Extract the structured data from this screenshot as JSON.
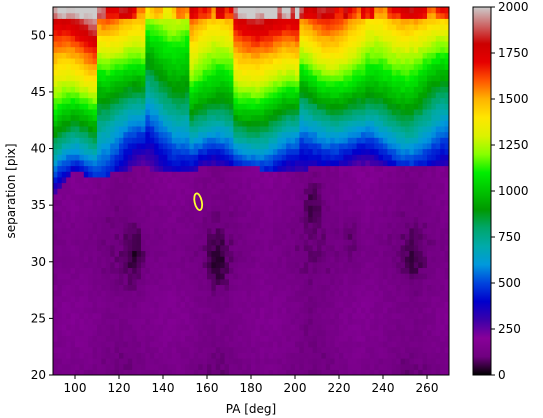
{
  "chart_data": {
    "type": "heatmap",
    "title": "",
    "xlabel": "PA [deg]",
    "ylabel": "separation [pix]",
    "xlim": [
      90,
      270
    ],
    "ylim": [
      20,
      52.5
    ],
    "x_ticks": [
      100,
      120,
      140,
      160,
      180,
      200,
      220,
      240,
      260
    ],
    "y_ticks": [
      20,
      25,
      30,
      35,
      40,
      45,
      50
    ],
    "colormap": "nipy_spectral",
    "colorbar": {
      "range": [
        0,
        2000
      ],
      "ticks": [
        0,
        250,
        500,
        750,
        1000,
        1250,
        1500,
        1750,
        2000
      ]
    },
    "boundary_separation_by_pa": [
      [
        90,
        36.0
      ],
      [
        100,
        38.0
      ],
      [
        110,
        37.5
      ],
      [
        120,
        38.0
      ],
      [
        130,
        38.5
      ],
      [
        140,
        38.0
      ],
      [
        150,
        38.0
      ],
      [
        160,
        38.5
      ],
      [
        170,
        38.5
      ],
      [
        180,
        38.5
      ],
      [
        190,
        38.0
      ],
      [
        200,
        38.0
      ],
      [
        210,
        38.5
      ],
      [
        220,
        38.5
      ],
      [
        230,
        38.5
      ],
      [
        240,
        38.5
      ],
      [
        250,
        38.5
      ],
      [
        260,
        38.5
      ],
      [
        270,
        38.5
      ]
    ],
    "high_value_bands": [
      {
        "pa": 100,
        "separation_min": 46,
        "value": 1400
      },
      {
        "pa": 120,
        "separation_min": 47,
        "value": 1100
      },
      {
        "pa": 145,
        "separation_min": 49,
        "value": 1000
      },
      {
        "pa": 160,
        "separation_min": 45,
        "value": 1000
      },
      {
        "pa": 185,
        "separation_min": 46,
        "value": 1300
      },
      {
        "pa": 220,
        "separation_min": 47,
        "value": 1150
      },
      {
        "pa": 245,
        "separation_min": 48,
        "value": 1200
      },
      {
        "pa": 262,
        "separation_min": 49,
        "value": 1300
      }
    ],
    "dark_features": [
      {
        "pa": 127,
        "separation": 30.5,
        "value": 40
      },
      {
        "pa": 165,
        "separation": 30.0,
        "value": 30
      },
      {
        "pa": 208,
        "separation": 35.0,
        "value": 60
      },
      {
        "pa": 254,
        "separation": 30.5,
        "value": 50
      },
      {
        "pa": 225,
        "separation": 32.0,
        "value": 90
      },
      {
        "pa": 207,
        "separation": 25.0,
        "value": 100
      }
    ],
    "contours": [
      {
        "pa": 156,
        "separation": 35.3,
        "color": "#ffff33",
        "value": 1250
      }
    ]
  }
}
